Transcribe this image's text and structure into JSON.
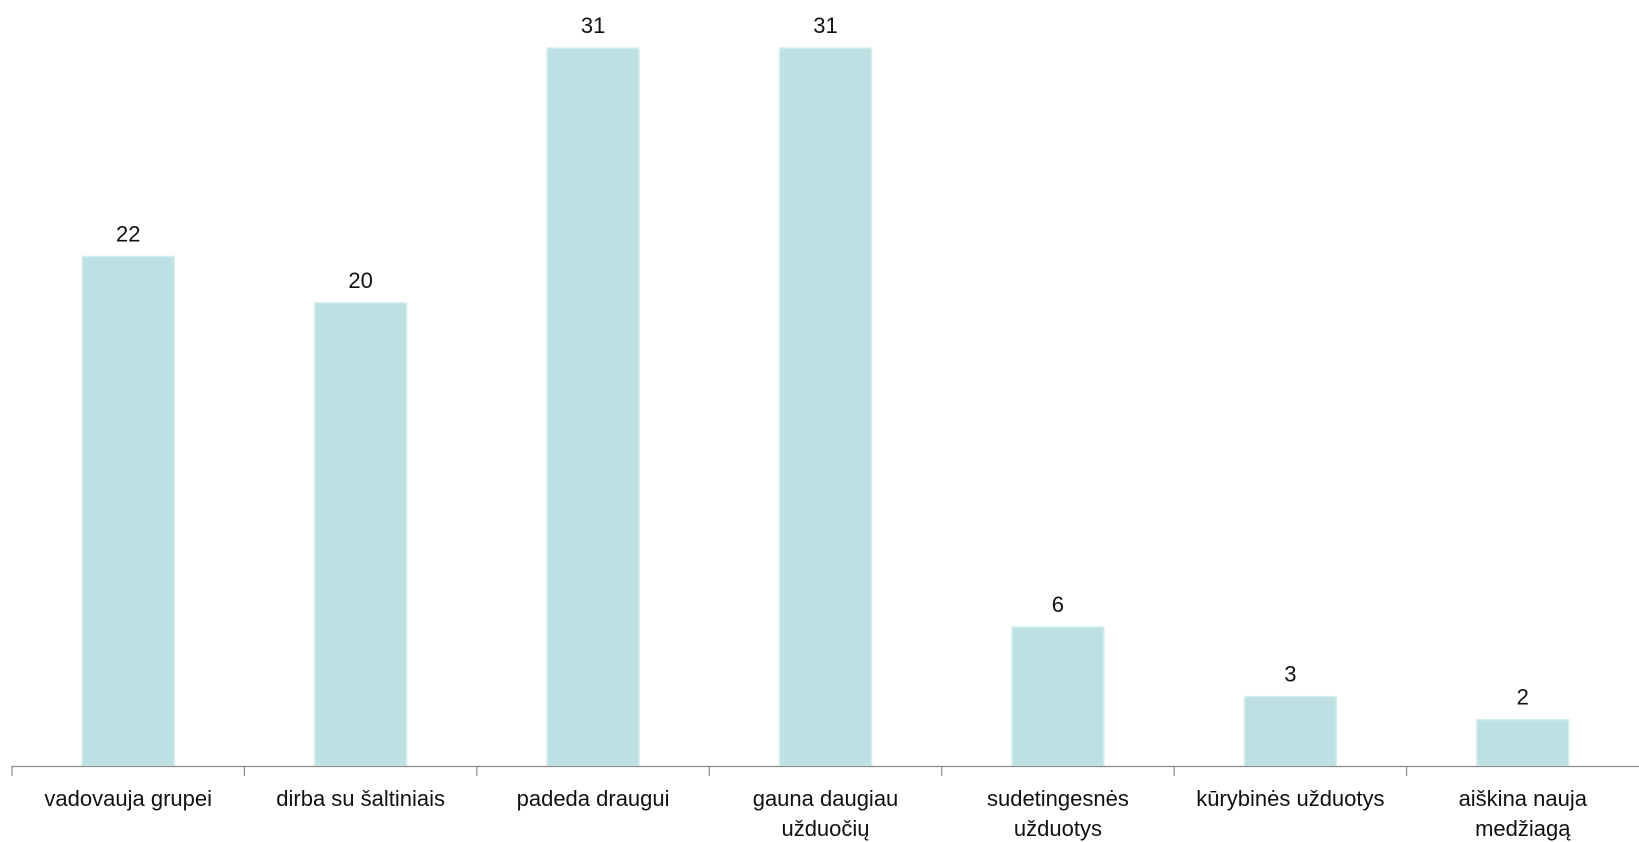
{
  "chart_data": {
    "type": "bar",
    "categories": [
      [
        "vadovauja grupei"
      ],
      [
        "dirba su šaltiniais"
      ],
      [
        "padeda draugui"
      ],
      [
        "gauna daugiau",
        "užduočių"
      ],
      [
        "sudetingesnės",
        "užduotys"
      ],
      [
        "kūrybinės užduotys"
      ],
      [
        "aiškina nauja",
        "medžiagą"
      ]
    ],
    "values": [
      22,
      20,
      31,
      31,
      6,
      3,
      2
    ],
    "data_labels": [
      "22",
      "20",
      "31",
      "31",
      "6",
      "3",
      "2"
    ],
    "title": "",
    "xlabel": "",
    "ylabel": "",
    "ylim": [
      0,
      31
    ],
    "grid": false,
    "legend": "none",
    "bar_color": "#bde1e3",
    "axis_color": "#8c8c8c"
  }
}
